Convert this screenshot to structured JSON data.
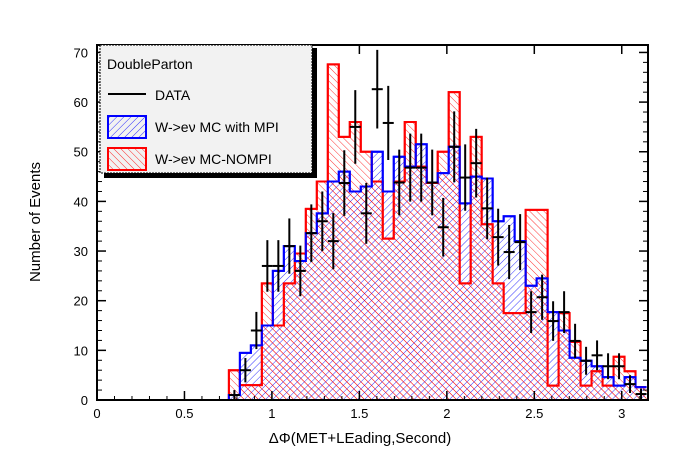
{
  "chart_data": {
    "type": "bar",
    "title": "",
    "xlabel": "ΔΦ(MET+LEading,Second)",
    "ylabel": "Number of Events",
    "xlim": [
      0,
      3.15
    ],
    "ylim": [
      0,
      71.5
    ],
    "x_ticks": [
      0,
      0.5,
      1,
      1.5,
      2,
      2.5,
      3
    ],
    "x_tick_labels": [
      "0",
      "0.5",
      "1",
      "1.5",
      "2",
      "2.5",
      "3"
    ],
    "y_ticks": [
      0,
      10,
      20,
      30,
      40,
      50,
      60,
      70
    ],
    "y_tick_labels": [
      "0",
      "10",
      "20",
      "30",
      "40",
      "50",
      "60",
      "70"
    ],
    "bins": {
      "n": 50,
      "min": 0,
      "max": 3.14159
    },
    "legend": {
      "placement": "top-left",
      "title": "DoubleParton",
      "entries": [
        "DATA",
        "W->eν MC with MPI",
        "W->eν MC-NOMPI"
      ]
    },
    "series": [
      {
        "name": "W->eν MC-NOMPI",
        "color": "#ff0000",
        "values": [
          0,
          0,
          0,
          0,
          0,
          0,
          0,
          0,
          0,
          0,
          0,
          0,
          6,
          3,
          3,
          23.5,
          15,
          23.5,
          29.5,
          38.5,
          44,
          67.6,
          53,
          56,
          50,
          44,
          32.5,
          44,
          56,
          47,
          43.7,
          50,
          62,
          23.5,
          53,
          35.4,
          23.5,
          17.5,
          17.5,
          38.3,
          38.3,
          2.9,
          17.5,
          11.7,
          2.9,
          5.8,
          2.9,
          8.7,
          5.8,
          2.6
        ]
      },
      {
        "name": "W->eν MC with MPI",
        "color": "#0000ff",
        "values": [
          0,
          0,
          0,
          0,
          0,
          0,
          0,
          0,
          0,
          0,
          0,
          0,
          1,
          9.5,
          11,
          15,
          26,
          31,
          28,
          33.6,
          37.6,
          44,
          46,
          42,
          43,
          50,
          42,
          49,
          47,
          51.5,
          43.8,
          45.7,
          51,
          39.6,
          45,
          44.6,
          36,
          37,
          32,
          23,
          24.5,
          17.7,
          14,
          8.5,
          7.9,
          6.8,
          4.6,
          2.9,
          4.6,
          2.6
        ]
      },
      {
        "name": "DATA",
        "color": "#000000",
        "values": [
          0,
          0,
          0,
          0,
          0,
          0,
          0,
          0,
          0,
          0,
          0,
          0,
          1,
          6,
          14,
          27,
          27,
          31,
          26,
          33.6,
          36,
          32,
          43.7,
          55,
          37.6,
          62.6,
          55.8,
          43.8,
          46.8,
          46.8,
          43.8,
          34.8,
          51,
          44.8,
          47.7,
          38.6,
          32.8,
          29.8,
          31.8,
          17.7,
          20.7,
          15.9,
          17.7,
          11.9,
          7.9,
          9,
          6.8,
          6.8,
          3.2,
          1.2
        ]
      }
    ]
  }
}
